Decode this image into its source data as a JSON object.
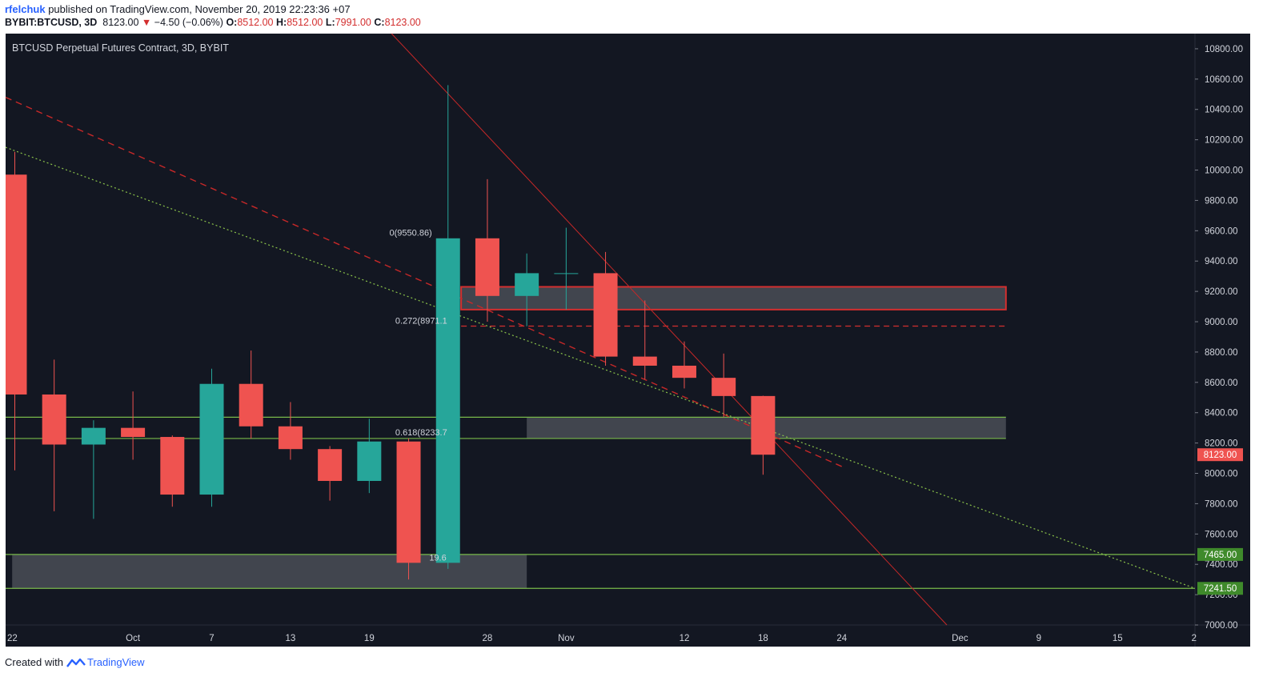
{
  "header": {
    "user": "rfelchuk",
    "published": " published on TradingView.com, November 20, 2019 22:23:36 +07",
    "symbol": "BYBIT:BTCUSD, 3D",
    "last": "8123.00",
    "change_arrow": "▼",
    "change": "−4.50 (−0.06%)",
    "o_label": "O:",
    "o_value": "8512.00",
    "h_label": "H:",
    "h_value": "8512.00",
    "l_label": "L:",
    "l_value": "7991.00",
    "c_label": "C:",
    "c_value": "8123.00"
  },
  "footer": {
    "created": "Created with",
    "brand": "TradingView"
  },
  "colors": {
    "bg": "#131722",
    "up": "#26a69a",
    "down": "#ef5350",
    "green_line": "#78b84a",
    "zone": "#4a4d56",
    "resistance": "#d32f2f",
    "trend_red": "#c62828",
    "trend_green": "#8bc34a",
    "axis_text": "#d1d4dc"
  },
  "chart_data": {
    "type": "candlestick",
    "title": "BTCUSD Perpetual Futures Contract, 3D, BYBIT",
    "ylim": [
      7000,
      10900
    ],
    "y_ticks": [
      7000,
      7200,
      7400,
      7600,
      7800,
      8000,
      8200,
      8400,
      8600,
      8800,
      9000,
      9200,
      9400,
      9600,
      9800,
      10000,
      10200,
      10400,
      10600,
      10800
    ],
    "x_ticks": [
      {
        "day": 0,
        "label": "22"
      },
      {
        "day": 9,
        "label": "Oct"
      },
      {
        "day": 15,
        "label": "7"
      },
      {
        "day": 21,
        "label": "13"
      },
      {
        "day": 27,
        "label": "19"
      },
      {
        "day": 36,
        "label": "28"
      },
      {
        "day": 42,
        "label": "Nov"
      },
      {
        "day": 51,
        "label": "12"
      },
      {
        "day": 57,
        "label": "18"
      },
      {
        "day": 63,
        "label": "24"
      },
      {
        "day": 72,
        "label": "Dec"
      },
      {
        "day": 78,
        "label": "9"
      },
      {
        "day": 84,
        "label": "15"
      },
      {
        "day": 90,
        "label": "2"
      }
    ],
    "x_range_days": [
      -0.7,
      89.9
    ],
    "candles": [
      {
        "day": 0,
        "o": 9970,
        "h": 10120,
        "l": 8020,
        "c": 8520
      },
      {
        "day": 3,
        "o": 8520,
        "h": 8750,
        "l": 7750,
        "c": 8190
      },
      {
        "day": 6,
        "o": 8190,
        "h": 8350,
        "l": 7700,
        "c": 8300
      },
      {
        "day": 9,
        "o": 8300,
        "h": 8540,
        "l": 8090,
        "c": 8240
      },
      {
        "day": 12,
        "o": 8240,
        "h": 8250,
        "l": 7780,
        "c": 7860
      },
      {
        "day": 15,
        "o": 7860,
        "h": 8690,
        "l": 7780,
        "c": 8590
      },
      {
        "day": 18,
        "o": 8590,
        "h": 8810,
        "l": 8230,
        "c": 8310
      },
      {
        "day": 21,
        "o": 8310,
        "h": 8470,
        "l": 8090,
        "c": 8160
      },
      {
        "day": 24,
        "o": 8160,
        "h": 8180,
        "l": 7820,
        "c": 7950
      },
      {
        "day": 27,
        "o": 7950,
        "h": 8360,
        "l": 7870,
        "c": 8210
      },
      {
        "day": 30,
        "o": 8210,
        "h": 8230,
        "l": 7300,
        "c": 7410
      },
      {
        "day": 33,
        "o": 7410,
        "h": 10560,
        "l": 7370,
        "c": 9550
      },
      {
        "day": 36,
        "o": 9550,
        "h": 9940,
        "l": 9000,
        "c": 9170
      },
      {
        "day": 39,
        "o": 9170,
        "h": 9450,
        "l": 8970,
        "c": 9320
      },
      {
        "day": 42,
        "o": 9320,
        "h": 9620,
        "l": 9080,
        "c": 9320
      },
      {
        "day": 45,
        "o": 9320,
        "h": 9460,
        "l": 8710,
        "c": 8770
      },
      {
        "day": 48,
        "o": 8770,
        "h": 9140,
        "l": 8620,
        "c": 8710
      },
      {
        "day": 51,
        "o": 8710,
        "h": 8870,
        "l": 8560,
        "c": 8630
      },
      {
        "day": 54,
        "o": 8630,
        "h": 8790,
        "l": 8370,
        "c": 8510
      },
      {
        "day": 57,
        "o": 8510,
        "h": 8512,
        "l": 7991,
        "c": 8123
      }
    ],
    "zones": [
      {
        "name": "resistance-zone",
        "d0": 34,
        "d1": 75.5,
        "top": 9230,
        "bot": 9080
      },
      {
        "name": "mid-zone",
        "d0": 39,
        "d1": 75.5,
        "top": 8370,
        "bot": 8230
      },
      {
        "name": "support-zone",
        "d0": -0.2,
        "d1": 39,
        "top": 7465,
        "bot": 7241.5
      }
    ],
    "horizontal_lines": [
      {
        "name": "green-line-8370",
        "value": 8370,
        "d0": -0.7,
        "d1": 75.5
      },
      {
        "name": "green-line-8230",
        "value": 8230,
        "d0": -0.7,
        "d1": 75.5
      },
      {
        "name": "level-7465",
        "value": 7465,
        "d0": -0.7,
        "d1": 89.9
      },
      {
        "name": "level-7241",
        "value": 7241.5,
        "d0": -0.7,
        "d1": 89.9
      }
    ],
    "fib_levels": [
      {
        "label": "0(9550.86)",
        "value": 9550.86
      },
      {
        "label": "0.272(8971.1",
        "value": 8971.1
      },
      {
        "label": "0.618(8233.7",
        "value": 8233.7
      },
      {
        "label": "19.6",
        "value": 7410
      }
    ],
    "price_labels": [
      {
        "name": "last-price",
        "text": "8123.00",
        "value": 8123
      },
      {
        "name": "level-7465",
        "text": "7465.00",
        "value": 7465
      },
      {
        "name": "level-7241",
        "text": "7241.50",
        "value": 7241.5
      }
    ]
  }
}
